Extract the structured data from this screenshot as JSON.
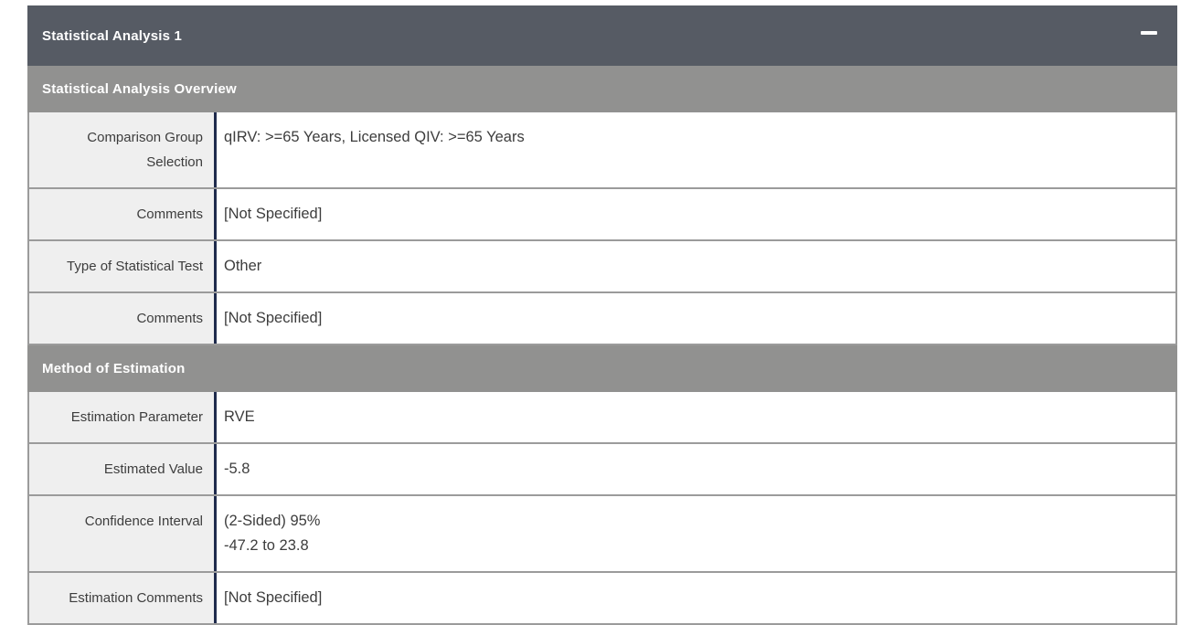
{
  "panel": {
    "title": "Statistical Analysis 1"
  },
  "sections": [
    {
      "title": "Statistical Analysis Overview",
      "rows": [
        {
          "label": "Comparison Group Selection",
          "value": "qIRV: >=65 Years, Licensed QIV: >=65 Years"
        },
        {
          "label": "Comments",
          "value": "[Not Specified]"
        },
        {
          "label": "Type of Statistical Test",
          "value": "Other"
        },
        {
          "label": "Comments",
          "value": "[Not Specified]"
        }
      ]
    },
    {
      "title": "Method of Estimation",
      "rows": [
        {
          "label": "Estimation Parameter",
          "value": "RVE"
        },
        {
          "label": "Estimated Value",
          "value": "-5.8"
        },
        {
          "label": "Confidence Interval",
          "value_lines": [
            "(2-Sided) 95%",
            "-47.2 to 23.8"
          ]
        },
        {
          "label": "Estimation Comments",
          "value": "[Not Specified]"
        }
      ]
    }
  ],
  "icons": {
    "collapse": "minus-icon"
  },
  "colors": {
    "header_bg": "#565B64",
    "section_bg": "#919190",
    "label_bg": "#EFEFEF",
    "border_gray": "#9B9B9B",
    "divider_navy": "#1F2B4D"
  }
}
